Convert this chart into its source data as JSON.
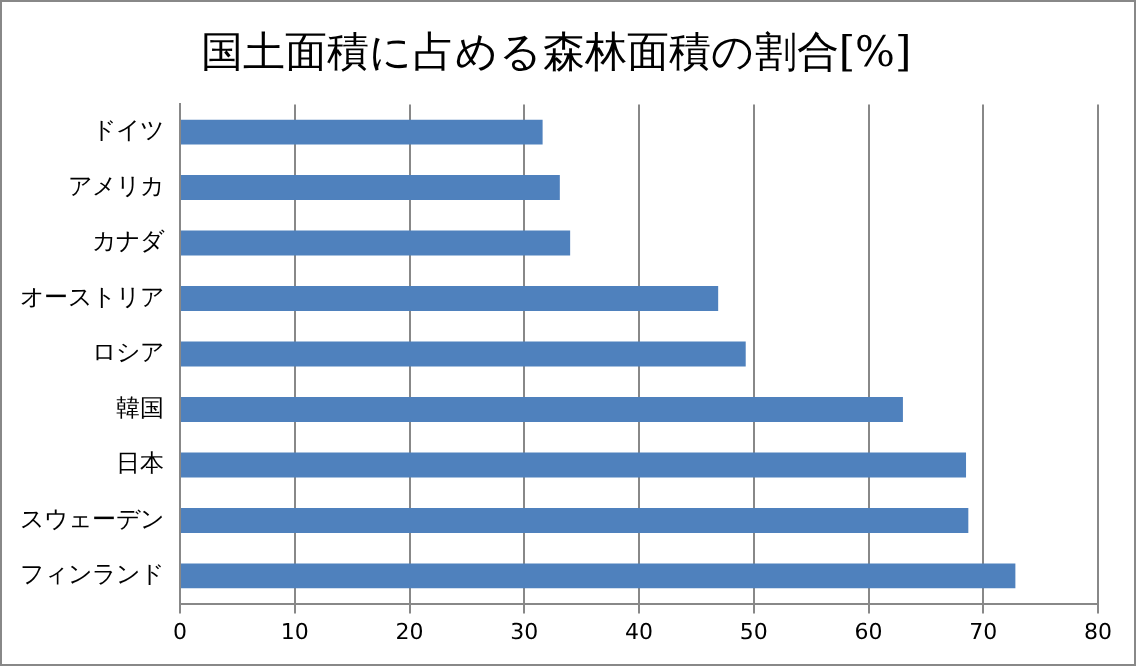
{
  "chart_data": {
    "type": "bar",
    "orientation": "horizontal",
    "title": "国土面積に占める森林面積の割合[%]",
    "categories": [
      "ドイツ",
      "アメリカ",
      "カナダ",
      "オーストリア",
      "ロシア",
      "韓国",
      "日本",
      "スウェーデン",
      "フィンランド"
    ],
    "values": [
      31.6,
      33.1,
      34.0,
      46.9,
      49.3,
      63.0,
      68.5,
      68.7,
      72.8
    ],
    "color": "#4f81bd",
    "xlim": [
      0,
      80
    ],
    "xticks": [
      0,
      10,
      20,
      30,
      40,
      50,
      60,
      70,
      80
    ],
    "grid": "x"
  }
}
